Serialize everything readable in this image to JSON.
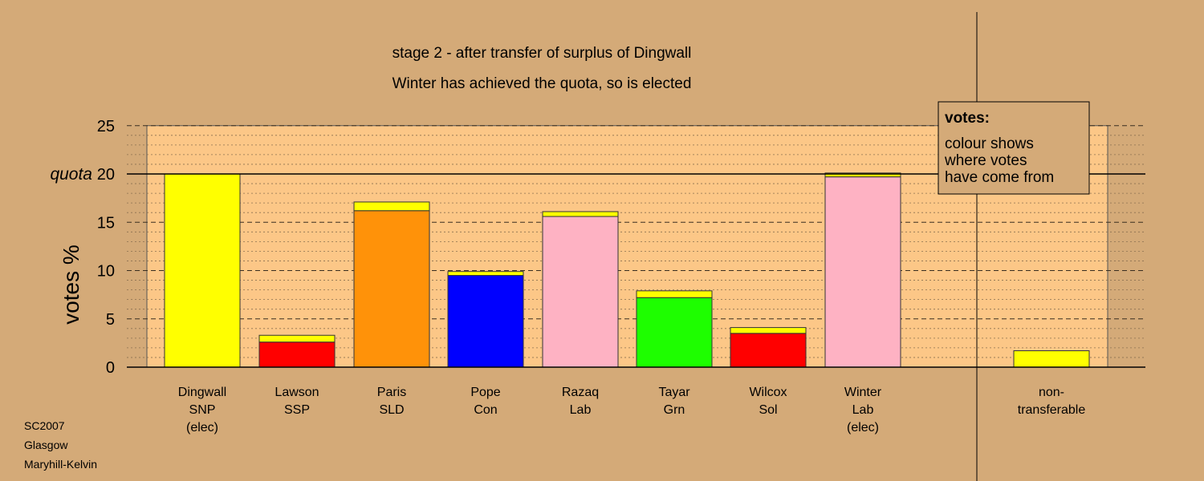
{
  "chart_data": {
    "type": "bar",
    "stacked": true,
    "title": "stage 2 - after transfer of surplus of Dingwall",
    "subtitle": "Winter has achieved the quota, so is elected",
    "ylabel": "votes %",
    "ylim": [
      0,
      25
    ],
    "yticks": [
      "0",
      "5",
      "10",
      "15",
      "20",
      "25"
    ],
    "quota": {
      "label": "quota",
      "value": 20
    },
    "grid": true,
    "categories": [
      {
        "lines": [
          "Dingwall",
          "SNP",
          "(elec)"
        ]
      },
      {
        "lines": [
          "Lawson",
          "SSP"
        ]
      },
      {
        "lines": [
          "Paris",
          "SLD"
        ]
      },
      {
        "lines": [
          "Pope",
          "Con"
        ]
      },
      {
        "lines": [
          "Razaq",
          "Lab"
        ]
      },
      {
        "lines": [
          "Tayar",
          "Grn"
        ]
      },
      {
        "lines": [
          "Wilcox",
          "Sol"
        ]
      },
      {
        "lines": [
          "Winter",
          "Lab",
          "(elec)"
        ]
      },
      {
        "lines": [
          "non-",
          "transferable"
        ]
      }
    ],
    "bars": [
      {
        "segments": [
          {
            "value": 20.0,
            "color": "#ffff00"
          }
        ]
      },
      {
        "segments": [
          {
            "value": 2.6,
            "color": "#ff0000"
          },
          {
            "value": 0.7,
            "color": "#ffff00"
          }
        ]
      },
      {
        "segments": [
          {
            "value": 16.2,
            "color": "#ff9209"
          },
          {
            "value": 0.9,
            "color": "#ffff00"
          }
        ]
      },
      {
        "segments": [
          {
            "value": 9.5,
            "color": "#0000ff"
          },
          {
            "value": 0.4,
            "color": "#ffff00"
          }
        ]
      },
      {
        "segments": [
          {
            "value": 15.6,
            "color": "#feb2c3"
          },
          {
            "value": 0.5,
            "color": "#ffff00"
          }
        ]
      },
      {
        "segments": [
          {
            "value": 7.2,
            "color": "#1efe00"
          },
          {
            "value": 0.7,
            "color": "#ffff00"
          }
        ]
      },
      {
        "segments": [
          {
            "value": 3.5,
            "color": "#ff0000"
          },
          {
            "value": 0.6,
            "color": "#ffff00"
          }
        ]
      },
      {
        "segments": [
          {
            "value": 19.7,
            "color": "#feb2c3"
          },
          {
            "value": 0.4,
            "color": "#ffff00"
          }
        ]
      },
      {
        "segments": [
          {
            "value": 1.7,
            "color": "#ffff00"
          }
        ]
      }
    ],
    "legend": {
      "title": "votes:",
      "lines": [
        "colour shows",
        "where votes",
        "have come from"
      ],
      "placement": "top-right"
    },
    "footer": [
      "SC2007",
      "Glasgow",
      "Maryhill-Kelvin"
    ]
  }
}
